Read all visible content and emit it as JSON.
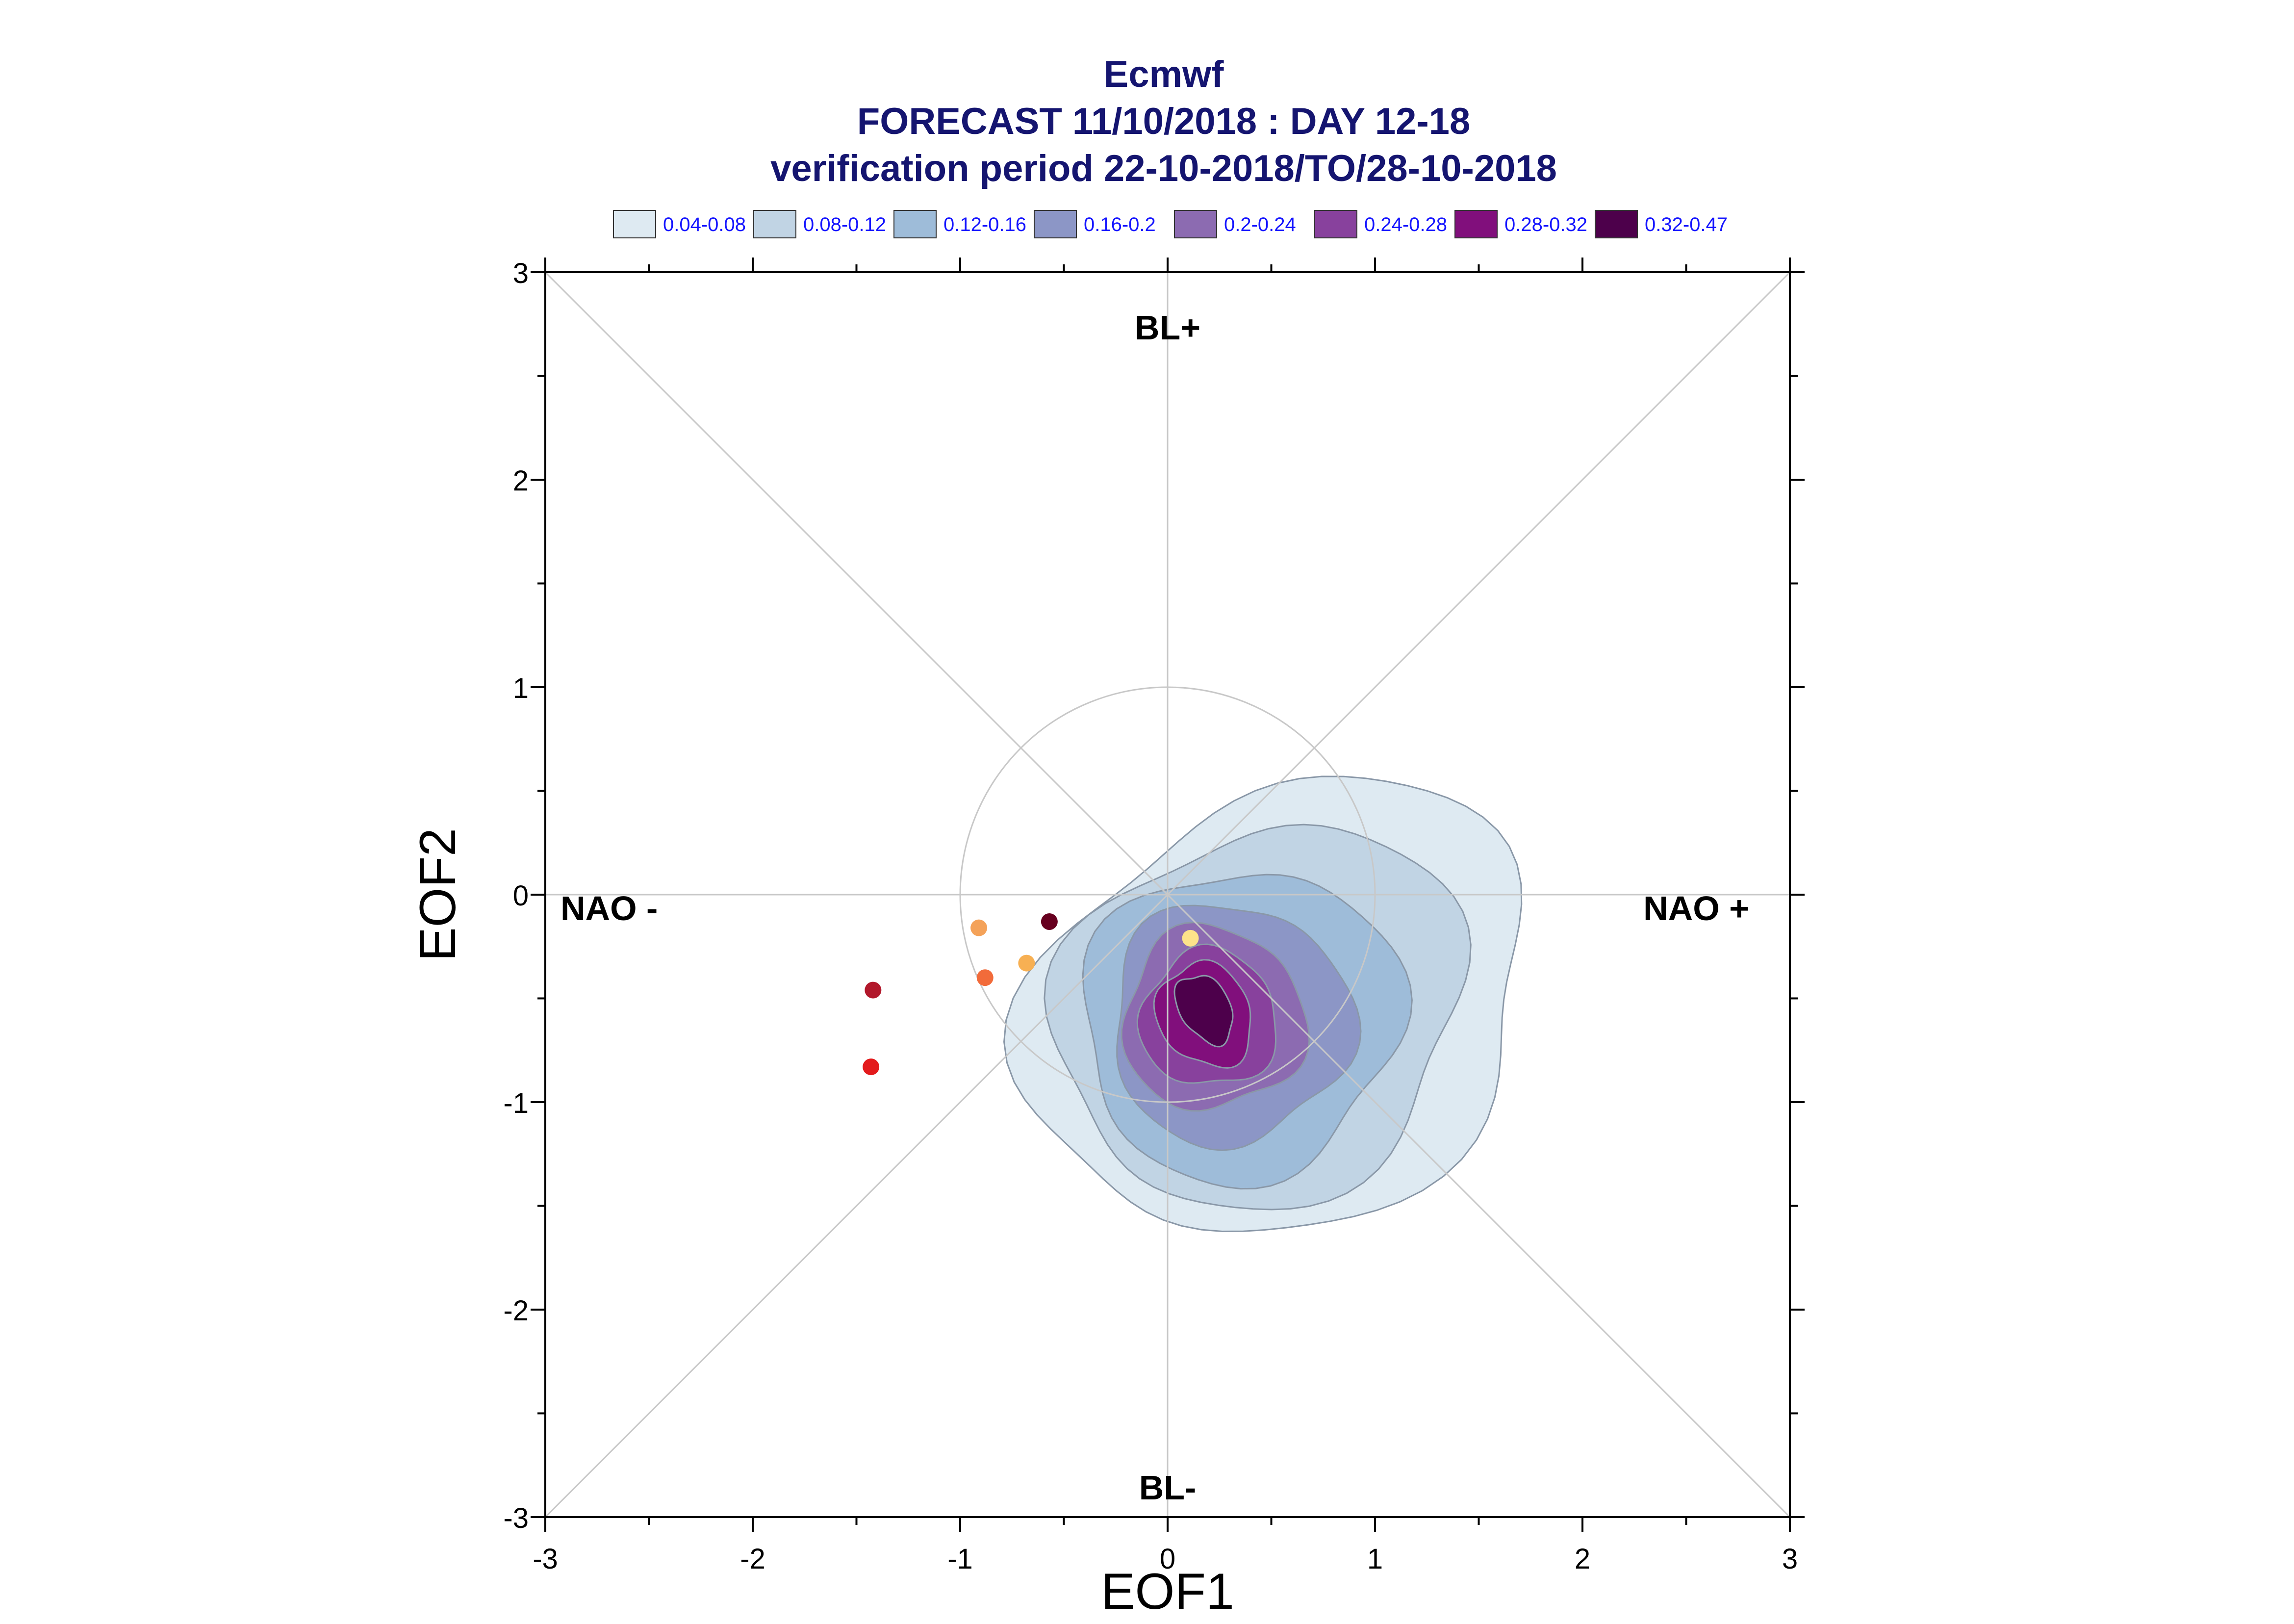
{
  "title": {
    "line1": "Ecmwf",
    "line2": "FORECAST 11/10/2018 : DAY 12-18",
    "line3": "verification period 22-10-2018/TO/28-10-2018"
  },
  "legend": [
    {
      "label": "0.04-0.08",
      "color": "#deeaf2"
    },
    {
      "label": "0.08-0.12",
      "color": "#c1d4e4"
    },
    {
      "label": "0.12-0.16",
      "color": "#9ebcd9"
    },
    {
      "label": "0.16-0.2",
      "color": "#8c96c6"
    },
    {
      "label": "0.2-0.24",
      "color": "#8c6bb1"
    },
    {
      "label": "0.24-0.28",
      "color": "#88419d"
    },
    {
      "label": "0.28-0.32",
      "color": "#810f7c"
    },
    {
      "label": "0.32-0.47",
      "color": "#4d004b"
    }
  ],
  "chart_data": {
    "type": "scatter",
    "xlabel": "EOF1",
    "ylabel": "EOF2",
    "xlim": [
      -3,
      3
    ],
    "ylim": [
      -3,
      3
    ],
    "xticks": [
      "-3",
      "-2",
      "-1",
      "0",
      "1",
      "2",
      "3"
    ],
    "yticks": [
      "-3",
      "-2",
      "-1",
      "0",
      "1",
      "2",
      "3"
    ],
    "regime_labels": {
      "top": "BL+",
      "bottom": "BL-",
      "left": "NAO -",
      "right": "NAO +"
    },
    "reference_circle_radius": 1,
    "density_center": [
      0.18,
      -0.55
    ],
    "points": [
      {
        "x": -0.57,
        "y": -0.13,
        "color": "#67001f"
      },
      {
        "x": -0.91,
        "y": -0.16,
        "color": "#f4a259"
      },
      {
        "x": -0.88,
        "y": -0.4,
        "color": "#f26b3a"
      },
      {
        "x": -0.68,
        "y": -0.33,
        "color": "#f7b053"
      },
      {
        "x": 0.11,
        "y": -0.21,
        "color": "#fde28a"
      },
      {
        "x": -1.42,
        "y": -0.46,
        "color": "#b2182b"
      },
      {
        "x": -1.43,
        "y": -0.83,
        "color": "#e31a1c"
      }
    ]
  }
}
